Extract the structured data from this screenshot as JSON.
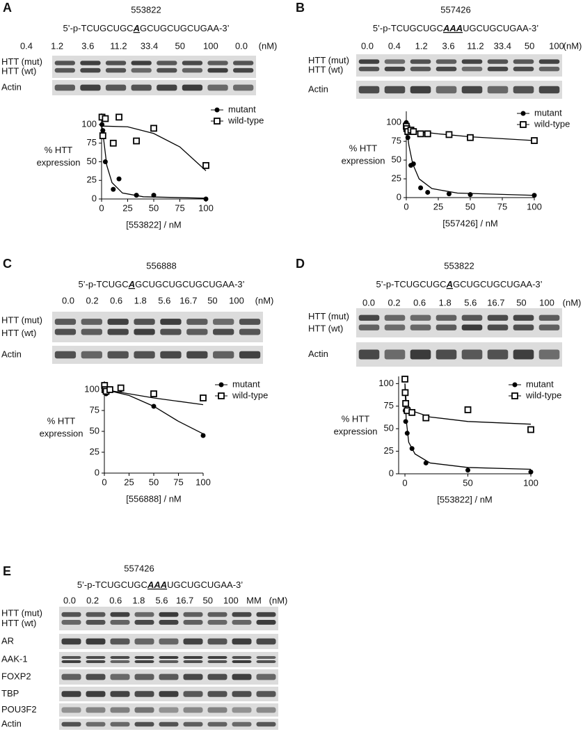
{
  "panels": [
    {
      "label": "A",
      "compound": "553822",
      "sequence": {
        "prefix": "5’-p-TCUGCUGC",
        "highlight": "A",
        "suffix": "GCUGCUGCUGAA-3’"
      },
      "concentrations": [
        "0.4",
        "1.2",
        "3.6",
        "11.2",
        "33.4",
        "50",
        "100",
        "0.0"
      ],
      "unit": "(nM)",
      "blot_labels": [
        "HTT (mut)",
        "HTT (wt)",
        "Actin"
      ]
    },
    {
      "label": "B",
      "compound": "557426",
      "sequence": {
        "prefix": "5’-p-TCUGCUGC",
        "highlight": "AAA",
        "suffix": "UGCUGCUGAA-3’"
      },
      "concentrations": [
        "0.0",
        "0.4",
        "1.2",
        "3.6",
        "11.2",
        "33.4",
        "50",
        "100"
      ],
      "unit": "(nM)",
      "blot_labels": [
        "HTT (mut)",
        "HTT (wt)",
        "Actin"
      ]
    },
    {
      "label": "C",
      "compound": "556888",
      "sequence": {
        "prefix": "5’-p-TCUGC",
        "highlight": "A",
        "suffix": "GCUGCUGCUGCUGAA-3’"
      },
      "concentrations": [
        "0.0",
        "0.2",
        "0.6",
        "1.8",
        "5.6",
        "16.7",
        "50",
        "100"
      ],
      "unit": "(nM)",
      "blot_labels": [
        "HTT (mut)",
        "HTT (wt)",
        "Actin"
      ]
    },
    {
      "label": "D",
      "compound": "553822",
      "sequence": {
        "prefix": "5’-p-TCUGCUGC",
        "highlight": "A",
        "suffix": "GCUGCUGCUGAA-3’"
      },
      "concentrations": [
        "0.0",
        "0.2",
        "0.6",
        "1.8",
        "5.6",
        "16.7",
        "50",
        "100"
      ],
      "unit": "(nM)",
      "blot_labels": [
        "HTT (mut)",
        "HTT (wt)",
        "Actin"
      ]
    },
    {
      "label": "E",
      "compound": "557426",
      "sequence": {
        "prefix": "5’-p-TCUGCUGC",
        "highlight": "AAA",
        "suffix": "UGCUGCUGAA-3’"
      },
      "concentrations": [
        "0.0",
        "0.2",
        "0.6",
        "1.8",
        "5.6",
        "16.7",
        "50",
        "100",
        "MM"
      ],
      "unit": "(nM)",
      "blot_labels": [
        "HTT (mut)",
        "HTT (wt)",
        "AR",
        "AAK-1",
        "FOXP2",
        "TBP",
        "POU3F2",
        "Actin"
      ]
    }
  ],
  "chart_data": [
    {
      "type": "scatter",
      "xlabel": "[553822] / nM",
      "ylabel": [
        "%  HTT",
        "expression"
      ],
      "xlim": [
        0,
        100
      ],
      "ylim": [
        0,
        115
      ],
      "xticks": [
        0,
        25,
        50,
        75,
        100
      ],
      "yticks": [
        0,
        25,
        50,
        75,
        100
      ],
      "legend": "top-right",
      "series": [
        {
          "name": "mutant",
          "marker": "circle",
          "color": "#000000",
          "x": [
            0.4,
            1.2,
            3.6,
            11.2,
            16.7,
            33.4,
            50,
            100
          ],
          "values": [
            100,
            92,
            50,
            13,
            27,
            5,
            5,
            0
          ],
          "fit": {
            "x": [
              0,
              2,
              5,
              10,
              20,
              40,
              100
            ],
            "y": [
              100,
              80,
              45,
              22,
              8,
              3,
              1
            ]
          }
        },
        {
          "name": "wild-type",
          "marker": "square",
          "color": "#000000",
          "x": [
            0.4,
            1.2,
            3.6,
            11.2,
            16.7,
            33.4,
            50,
            100
          ],
          "values": [
            110,
            85,
            108,
            75,
            110,
            78,
            95,
            45
          ],
          "fit": {
            "x": [
              0,
              25,
              50,
              75,
              100
            ],
            "y": [
              98,
              97,
              88,
              70,
              38
            ]
          }
        }
      ]
    },
    {
      "type": "scatter",
      "xlabel": "[557426] / nM",
      "ylabel": [
        "%  HTT",
        "expression"
      ],
      "xlim": [
        0,
        100
      ],
      "ylim": [
        0,
        115
      ],
      "xticks": [
        0,
        25,
        50,
        75,
        100
      ],
      "yticks": [
        0,
        25,
        50,
        75,
        100
      ],
      "legend": "top-right",
      "series": [
        {
          "name": "mutant",
          "marker": "circle",
          "color": "#000000",
          "x": [
            0,
            0.4,
            1.2,
            3.6,
            5.6,
            11.2,
            16.7,
            33.4,
            50,
            100
          ],
          "values": [
            100,
            90,
            80,
            43,
            45,
            13,
            7,
            5,
            4,
            3
          ],
          "fit": {
            "x": [
              0,
              2,
              5,
              10,
              20,
              40,
              100
            ],
            "y": [
              100,
              70,
              45,
              25,
              12,
              6,
              3
            ]
          }
        },
        {
          "name": "wild-type",
          "marker": "square",
          "color": "#000000",
          "x": [
            0,
            0.4,
            1.2,
            3.6,
            5.6,
            11.2,
            16.7,
            33.4,
            50,
            100
          ],
          "values": [
            95,
            92,
            88,
            90,
            88,
            85,
            85,
            84,
            80,
            76
          ],
          "fit": {
            "x": [
              0,
              25,
              50,
              100
            ],
            "y": [
              90,
              85,
              81,
              76
            ]
          }
        }
      ]
    },
    {
      "type": "scatter",
      "xlabel": "[556888] / nM",
      "ylabel": [
        "%  HTT",
        "expression"
      ],
      "xlim": [
        0,
        100
      ],
      "ylim": [
        0,
        110
      ],
      "xticks": [
        0,
        25,
        50,
        75,
        100
      ],
      "yticks": [
        0,
        25,
        50,
        75,
        100
      ],
      "legend": "top-right",
      "series": [
        {
          "name": "mutant",
          "marker": "circle",
          "color": "#000000",
          "x": [
            0.2,
            0.6,
            1.8,
            5.6,
            16.7,
            50,
            100
          ],
          "values": [
            100,
            97,
            95,
            100,
            100,
            80,
            45
          ],
          "fit": {
            "x": [
              0,
              25,
              50,
              75,
              100
            ],
            "y": [
              100,
              93,
              80,
              62,
              47
            ]
          }
        },
        {
          "name": "wild-type",
          "marker": "square",
          "color": "#000000",
          "x": [
            0.2,
            0.6,
            1.8,
            5.6,
            16.7,
            50,
            100
          ],
          "values": [
            105,
            100,
            98,
            100,
            102,
            95,
            90
          ],
          "fit": {
            "x": [
              0,
              50,
              100
            ],
            "y": [
              100,
              90,
              82
            ]
          }
        }
      ]
    },
    {
      "type": "scatter",
      "xlabel": "[553822] / nM",
      "ylabel": [
        "%  HTT",
        "expression"
      ],
      "xlim": [
        -5,
        100
      ],
      "ylim": [
        0,
        108
      ],
      "xticks": [
        0,
        50,
        100
      ],
      "yticks": [
        0,
        25,
        50,
        75,
        100
      ],
      "legend": "top-right",
      "series": [
        {
          "name": "mutant",
          "marker": "circle",
          "color": "#000000",
          "x": [
            0,
            0.2,
            0.6,
            1.8,
            5.6,
            16.7,
            50,
            100
          ],
          "values": [
            105,
            70,
            58,
            45,
            28,
            12,
            4,
            2
          ],
          "fit": {
            "x": [
              0,
              1,
              3,
              8,
              20,
              50,
              100
            ],
            "y": [
              100,
              60,
              35,
              22,
              12,
              7,
              5
            ]
          }
        },
        {
          "name": "wild-type",
          "marker": "square",
          "color": "#000000",
          "x": [
            0,
            0.2,
            0.6,
            1.8,
            5.6,
            16.7,
            50,
            100
          ],
          "values": [
            105,
            90,
            78,
            70,
            68,
            62,
            71,
            49
          ],
          "fit": {
            "x": [
              0,
              1,
              5,
              20,
              50,
              100
            ],
            "y": [
              100,
              80,
              70,
              63,
              58,
              55
            ]
          }
        }
      ]
    }
  ]
}
